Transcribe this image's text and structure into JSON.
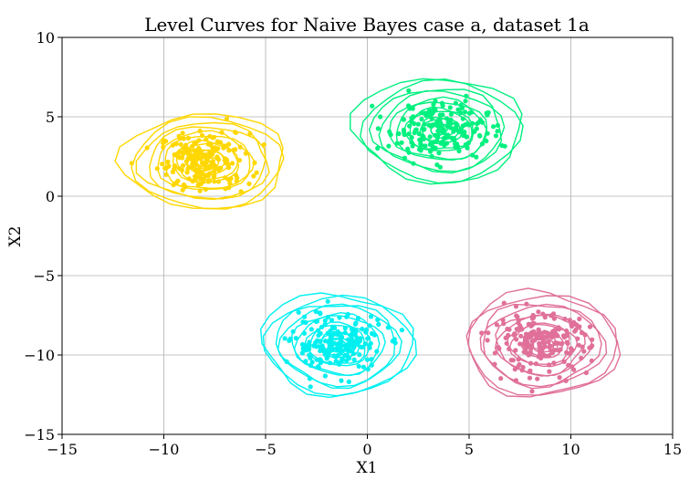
{
  "chart_data": {
    "type": "scatter",
    "title": "Level Curves for Naive Bayes case a, dataset 1a",
    "xlabel": "X1",
    "ylabel": "X2",
    "xlim": [
      -15,
      15
    ],
    "ylim": [
      -15,
      10
    ],
    "xticks": [
      -15,
      -10,
      -5,
      0,
      5,
      10,
      15
    ],
    "yticks": [
      -15,
      -10,
      -5,
      0,
      5,
      10
    ],
    "xtick_labels": [
      "−15",
      "−10",
      "−5",
      "0",
      "5",
      "10",
      "15"
    ],
    "ytick_labels": [
      "−15",
      "−10",
      "−5",
      "0",
      "5",
      "10"
    ],
    "grid": true,
    "series": [
      {
        "color": "#ffd700",
        "center": [
          -8.0,
          2.2
        ],
        "std": [
          1.1,
          0.9
        ],
        "points": 200,
        "level_curve_radii": [
          [
            0.4,
            0.35
          ],
          [
            0.9,
            0.75
          ],
          [
            1.5,
            1.25
          ],
          [
            2.2,
            1.8
          ],
          [
            3.0,
            2.4
          ],
          [
            3.8,
            3.0
          ]
        ]
      },
      {
        "color": "#00f07f",
        "center": [
          3.5,
          4.2
        ],
        "std": [
          1.2,
          0.9
        ],
        "points": 200,
        "level_curve_radii": [
          [
            0.4,
            0.35
          ],
          [
            0.9,
            0.75
          ],
          [
            1.6,
            1.3
          ],
          [
            2.3,
            1.9
          ],
          [
            3.1,
            2.6
          ],
          [
            4.0,
            3.3
          ]
        ]
      },
      {
        "color": "#00f0f0",
        "center": [
          -1.5,
          -9.3
        ],
        "std": [
          1.1,
          0.9
        ],
        "points": 200,
        "level_curve_radii": [
          [
            0.4,
            0.35
          ],
          [
            0.9,
            0.75
          ],
          [
            1.5,
            1.3
          ],
          [
            2.2,
            1.9
          ],
          [
            3.0,
            2.6
          ],
          [
            3.8,
            3.2
          ]
        ]
      },
      {
        "color": "#e07099",
        "center": [
          8.5,
          -9.3
        ],
        "std": [
          1.2,
          0.9
        ],
        "points": 200,
        "level_curve_radii": [
          [
            0.4,
            0.35
          ],
          [
            0.9,
            0.75
          ],
          [
            1.6,
            1.3
          ],
          [
            2.3,
            1.9
          ],
          [
            3.1,
            2.6
          ],
          [
            3.9,
            3.3
          ]
        ]
      }
    ]
  }
}
